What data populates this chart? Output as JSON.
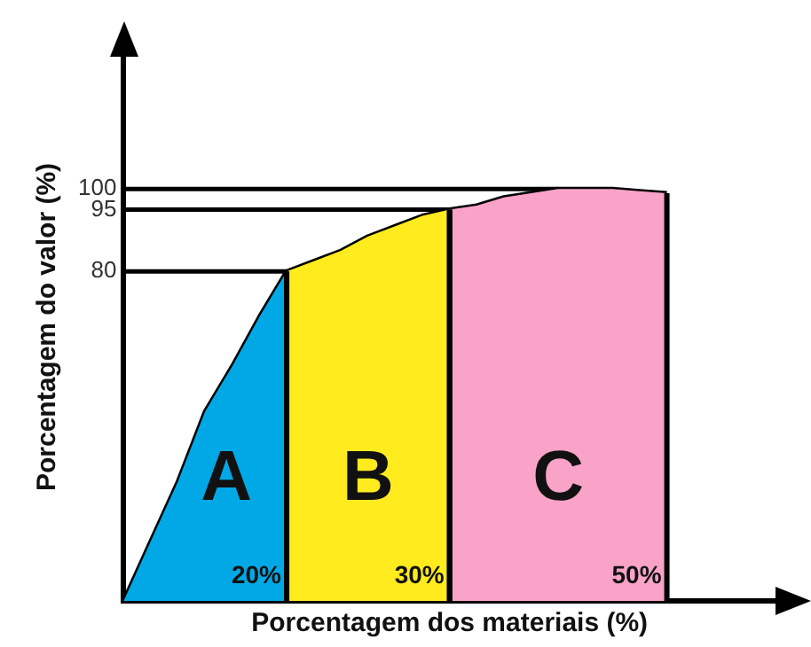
{
  "chart_data": {
    "type": "area",
    "xlabel": "Porcentagem dos materiais (%)",
    "ylabel": "Porcentagem do valor (%)",
    "ylim": [
      0,
      133
    ],
    "yticks": [
      80,
      95,
      100
    ],
    "tick_labels": "y",
    "grid": false,
    "categories": [
      null,
      null,
      null,
      null,
      null,
      null,
      null,
      null,
      null,
      null,
      null,
      null,
      null,
      null,
      null,
      null,
      null,
      null,
      null,
      null,
      null,
      null,
      null,
      null,
      null
    ],
    "series": [
      {
        "name": "A",
        "color": "#00a9e6",
        "values": [
          0,
          14.5,
          29,
          46,
          57,
          69,
          80,
          null,
          null,
          null,
          null,
          null,
          null,
          null,
          null,
          null,
          null,
          null,
          null,
          null,
          null,
          null,
          null,
          null,
          null
        ]
      },
      {
        "name": "B",
        "color": "#ffeb1e",
        "values": [
          null,
          null,
          null,
          null,
          null,
          null,
          80,
          82.5,
          85,
          88.5,
          91,
          93.5,
          95,
          null,
          null,
          null,
          null,
          null,
          null,
          null,
          null,
          null,
          null,
          null,
          null
        ]
      },
      {
        "name": "C",
        "color": "#f9a3c9",
        "values": [
          null,
          null,
          null,
          null,
          null,
          null,
          null,
          null,
          null,
          null,
          null,
          null,
          95,
          96,
          98,
          99,
          100,
          100,
          100,
          99.5,
          99,
          null,
          null,
          null,
          null
        ]
      },
      {
        "type": "line",
        "color": "#000000",
        "values": [
          0,
          14.5,
          29,
          46,
          57,
          69,
          80,
          82.5,
          85,
          88.5,
          91,
          93.5,
          95,
          96,
          98,
          99,
          100,
          100,
          100,
          99.5,
          99,
          null,
          null,
          null,
          null
        ]
      },
      {
        "type": "line",
        "color": "#000000",
        "values": [
          80,
          80,
          80,
          80,
          80,
          80,
          80,
          null,
          null,
          null,
          null,
          null,
          null,
          null,
          null,
          null,
          null,
          null,
          null,
          null,
          null,
          null,
          null,
          null,
          null
        ]
      },
      {
        "type": "line",
        "color": "#000000",
        "values": [
          95,
          95,
          95,
          95,
          95,
          95,
          95,
          95,
          95,
          95,
          95,
          95,
          95,
          null,
          null,
          null,
          null,
          null,
          null,
          null,
          null,
          null,
          null,
          null,
          null
        ]
      },
      {
        "type": "line",
        "color": "#000000",
        "values": [
          100,
          100,
          100,
          100,
          100,
          100,
          100,
          100,
          100,
          100,
          100,
          100,
          100,
          100,
          100,
          100,
          100,
          null,
          null,
          null,
          null,
          null,
          null,
          null,
          null
        ]
      }
    ],
    "annotations": [
      "20%",
      "30%",
      "50%"
    ]
  }
}
